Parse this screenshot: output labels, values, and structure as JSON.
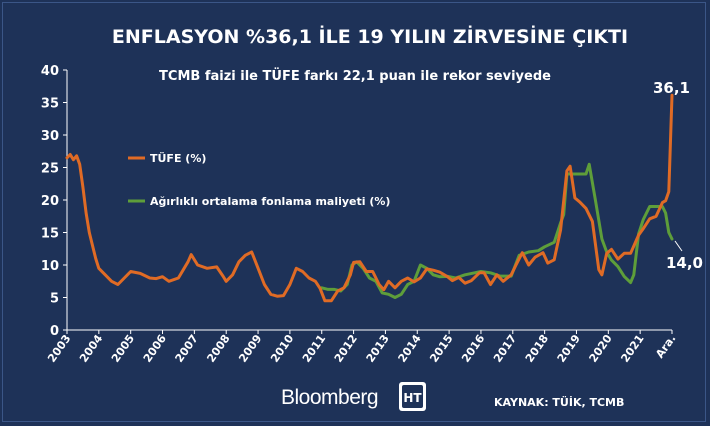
{
  "chart_data": {
    "type": "line",
    "title": "ENFLASYON %36,1 İLE 19 YILIN ZİRVESİNE ÇIKTI",
    "subtitle": "TCMB faizi ile TÜFE farkı 22,1 puan ile rekor seviyede",
    "ylim": [
      0,
      40
    ],
    "yticks": [
      "0",
      "5",
      "10",
      "15",
      "20",
      "25",
      "30",
      "35",
      "40"
    ],
    "xticks": [
      "2003",
      "2004",
      "2005",
      "2006",
      "2007",
      "2008",
      "2009",
      "2010",
      "2011",
      "2012",
      "2013",
      "2014",
      "2015",
      "2016",
      "2017",
      "2018",
      "2019",
      "2020",
      "2021",
      "Ara."
    ],
    "grid": false,
    "legend_position": "top-left",
    "series": [
      {
        "name": "TÜFE (%)",
        "color": "#e06b25",
        "points": [
          [
            2003.0,
            26.5
          ],
          [
            2003.1,
            27.0
          ],
          [
            2003.2,
            26.2
          ],
          [
            2003.3,
            26.8
          ],
          [
            2003.4,
            25.5
          ],
          [
            2003.5,
            22.0
          ],
          [
            2003.6,
            18.0
          ],
          [
            2003.7,
            15.0
          ],
          [
            2003.8,
            13.0
          ],
          [
            2003.9,
            11.0
          ],
          [
            2004.0,
            9.5
          ],
          [
            2004.2,
            8.5
          ],
          [
            2004.4,
            7.5
          ],
          [
            2004.6,
            7.0
          ],
          [
            2004.8,
            8.0
          ],
          [
            2005.0,
            9.0
          ],
          [
            2005.3,
            8.7
          ],
          [
            2005.6,
            8.0
          ],
          [
            2005.8,
            7.9
          ],
          [
            2006.0,
            8.2
          ],
          [
            2006.2,
            7.5
          ],
          [
            2006.5,
            8.0
          ],
          [
            2006.8,
            10.5
          ],
          [
            2006.9,
            11.6
          ],
          [
            2007.1,
            10.0
          ],
          [
            2007.4,
            9.5
          ],
          [
            2007.7,
            9.7
          ],
          [
            2007.9,
            8.3
          ],
          [
            2008.0,
            7.5
          ],
          [
            2008.2,
            8.5
          ],
          [
            2008.4,
            10.5
          ],
          [
            2008.6,
            11.5
          ],
          [
            2008.8,
            12.0
          ],
          [
            2009.0,
            9.5
          ],
          [
            2009.2,
            7.0
          ],
          [
            2009.4,
            5.5
          ],
          [
            2009.6,
            5.2
          ],
          [
            2009.8,
            5.3
          ],
          [
            2010.0,
            7.0
          ],
          [
            2010.2,
            9.5
          ],
          [
            2010.4,
            9.0
          ],
          [
            2010.6,
            8.0
          ],
          [
            2010.8,
            7.5
          ],
          [
            2010.95,
            6.4
          ],
          [
            2011.1,
            4.5
          ],
          [
            2011.3,
            4.5
          ],
          [
            2011.5,
            6.0
          ],
          [
            2011.7,
            6.5
          ],
          [
            2011.9,
            8.5
          ],
          [
            2012.0,
            10.4
          ],
          [
            2012.2,
            10.5
          ],
          [
            2012.4,
            9.0
          ],
          [
            2012.6,
            9.0
          ],
          [
            2012.8,
            7.0
          ],
          [
            2012.95,
            6.2
          ],
          [
            2013.1,
            7.5
          ],
          [
            2013.3,
            6.5
          ],
          [
            2013.5,
            7.5
          ],
          [
            2013.7,
            8.0
          ],
          [
            2013.9,
            7.4
          ],
          [
            2014.1,
            8.0
          ],
          [
            2014.3,
            9.4
          ],
          [
            2014.5,
            9.2
          ],
          [
            2014.7,
            8.9
          ],
          [
            2014.95,
            8.2
          ],
          [
            2015.1,
            7.6
          ],
          [
            2015.3,
            8.1
          ],
          [
            2015.5,
            7.2
          ],
          [
            2015.7,
            7.6
          ],
          [
            2015.95,
            8.8
          ],
          [
            2016.1,
            8.8
          ],
          [
            2016.3,
            7.0
          ],
          [
            2016.5,
            8.5
          ],
          [
            2016.7,
            7.5
          ],
          [
            2016.95,
            8.5
          ],
          [
            2017.1,
            10.0
          ],
          [
            2017.3,
            11.9
          ],
          [
            2017.5,
            10.0
          ],
          [
            2017.7,
            11.2
          ],
          [
            2017.95,
            11.9
          ],
          [
            2018.1,
            10.3
          ],
          [
            2018.3,
            10.8
          ],
          [
            2018.5,
            15.4
          ],
          [
            2018.7,
            24.5
          ],
          [
            2018.8,
            25.2
          ],
          [
            2018.95,
            20.3
          ],
          [
            2019.1,
            19.7
          ],
          [
            2019.3,
            18.7
          ],
          [
            2019.5,
            16.7
          ],
          [
            2019.7,
            9.3
          ],
          [
            2019.8,
            8.5
          ],
          [
            2019.95,
            11.8
          ],
          [
            2020.1,
            12.4
          ],
          [
            2020.3,
            10.9
          ],
          [
            2020.5,
            11.8
          ],
          [
            2020.7,
            11.8
          ],
          [
            2020.95,
            14.6
          ],
          [
            2021.1,
            15.6
          ],
          [
            2021.3,
            17.1
          ],
          [
            2021.5,
            17.5
          ],
          [
            2021.7,
            19.6
          ],
          [
            2021.8,
            19.9
          ],
          [
            2021.9,
            21.3
          ],
          [
            2022.0,
            36.1
          ]
        ]
      },
      {
        "name": "Ağırlıklı ortalama fonlama maliyeti (%)",
        "color": "#5e9e3a",
        "points": [
          [
            2011.0,
            6.5
          ],
          [
            2011.2,
            6.25
          ],
          [
            2011.4,
            6.25
          ],
          [
            2011.6,
            6.0
          ],
          [
            2011.8,
            7.0
          ],
          [
            2011.95,
            10.0
          ],
          [
            2012.1,
            10.5
          ],
          [
            2012.3,
            9.5
          ],
          [
            2012.5,
            8.0
          ],
          [
            2012.7,
            7.5
          ],
          [
            2012.9,
            5.7
          ],
          [
            2013.1,
            5.5
          ],
          [
            2013.3,
            5.0
          ],
          [
            2013.5,
            5.5
          ],
          [
            2013.7,
            7.0
          ],
          [
            2013.9,
            7.5
          ],
          [
            2014.1,
            10.0
          ],
          [
            2014.3,
            9.5
          ],
          [
            2014.5,
            8.5
          ],
          [
            2014.7,
            8.2
          ],
          [
            2014.95,
            8.25
          ],
          [
            2015.2,
            8.0
          ],
          [
            2015.5,
            8.5
          ],
          [
            2015.8,
            8.8
          ],
          [
            2016.0,
            9.0
          ],
          [
            2016.3,
            8.8
          ],
          [
            2016.6,
            8.3
          ],
          [
            2016.95,
            8.3
          ],
          [
            2017.2,
            11.5
          ],
          [
            2017.5,
            12.0
          ],
          [
            2017.8,
            12.2
          ],
          [
            2018.0,
            12.8
          ],
          [
            2018.3,
            13.5
          ],
          [
            2018.5,
            16.5
          ],
          [
            2018.6,
            17.75
          ],
          [
            2018.7,
            24.0
          ],
          [
            2018.9,
            24.0
          ],
          [
            2019.1,
            24.0
          ],
          [
            2019.3,
            24.0
          ],
          [
            2019.4,
            25.5
          ],
          [
            2019.6,
            19.8
          ],
          [
            2019.8,
            14.0
          ],
          [
            2019.95,
            12.0
          ],
          [
            2020.1,
            10.75
          ],
          [
            2020.3,
            9.75
          ],
          [
            2020.5,
            8.25
          ],
          [
            2020.7,
            7.3
          ],
          [
            2020.8,
            8.5
          ],
          [
            2020.95,
            14.8
          ],
          [
            2021.1,
            17.0
          ],
          [
            2021.3,
            19.0
          ],
          [
            2021.5,
            19.0
          ],
          [
            2021.7,
            19.0
          ],
          [
            2021.8,
            18.0
          ],
          [
            2021.9,
            15.0
          ],
          [
            2022.0,
            14.0
          ]
        ]
      }
    ],
    "annotations": [
      {
        "text": "36,1",
        "series": 0
      },
      {
        "text": "14,0",
        "series": 1
      }
    ]
  },
  "footer": {
    "logo": "Bloomberg",
    "badge_text": "HT",
    "source": "KAYNAK: TÜİK, TCMB"
  },
  "colors": {
    "background": "#1e3258",
    "text": "#ffffff",
    "axis": "#ffffff"
  }
}
